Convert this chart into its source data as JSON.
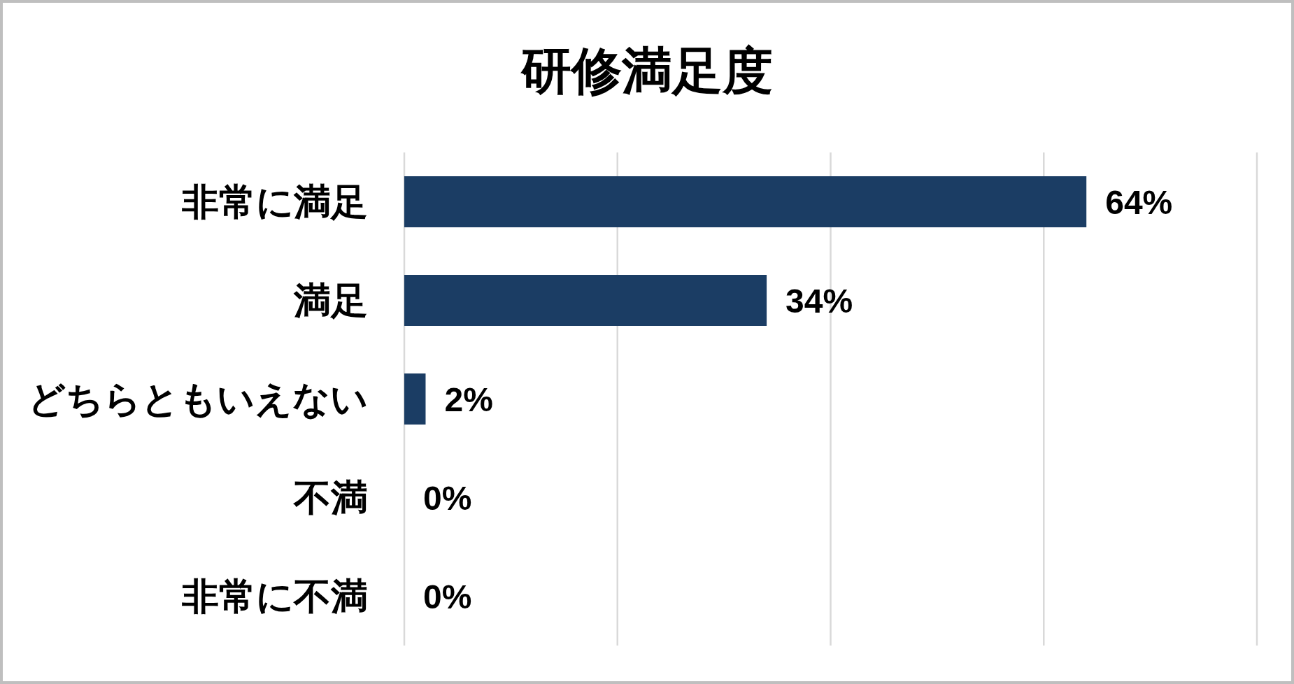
{
  "chart_data": {
    "type": "bar",
    "orientation": "horizontal",
    "title": "研修満足度",
    "categories": [
      "非常に満足",
      "満足",
      "どちらともいえない",
      "不満",
      "非常に不満"
    ],
    "values": [
      64,
      34,
      2,
      0,
      0
    ],
    "value_labels": [
      "64%",
      "34%",
      "2%",
      "0%",
      "0%"
    ],
    "color": "#1b3d64",
    "xlim": [
      0,
      80
    ],
    "xticks": [
      {
        "value": 0,
        "label": null
      },
      {
        "value": 20,
        "label": null
      },
      {
        "value": 40,
        "label": null
      },
      {
        "value": 60,
        "label": null
      },
      {
        "value": 80,
        "label": null
      }
    ],
    "grid": "x",
    "tick_labels": "y"
  }
}
